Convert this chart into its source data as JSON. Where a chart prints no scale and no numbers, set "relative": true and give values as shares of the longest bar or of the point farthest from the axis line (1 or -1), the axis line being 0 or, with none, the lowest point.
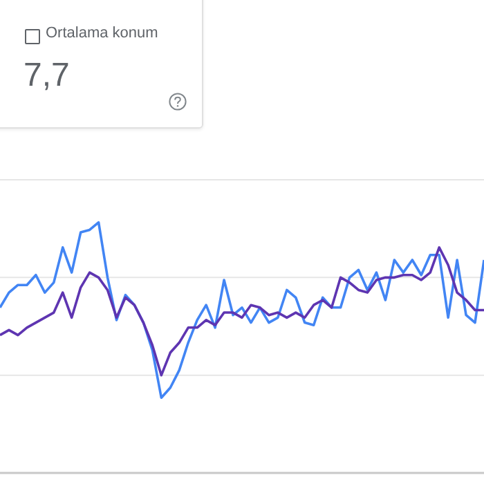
{
  "chart_data": {
    "type": "line",
    "relative": true,
    "legend": false,
    "marker": "none",
    "ref_lines": [
      {
        "axis": "y",
        "value": 0.39,
        "color": "#e6e6e6"
      },
      {
        "axis": "y",
        "value": 0.78,
        "color": "#e6e6e6"
      },
      {
        "axis": "y",
        "value": 1.17,
        "color": "#e6e6e6"
      }
    ],
    "annotations": [
      "Ortalama konum",
      "7,7"
    ],
    "categories": [
      null,
      null,
      null,
      null,
      null,
      null,
      null,
      null,
      null,
      null,
      null,
      null,
      null,
      null,
      null,
      null,
      null,
      null,
      null,
      null,
      null,
      null,
      null,
      null,
      null,
      null,
      null,
      null,
      null,
      null,
      null,
      null,
      null,
      null,
      null,
      null,
      null,
      null,
      null,
      null,
      null,
      null,
      null,
      null,
      null,
      null,
      null,
      null,
      null,
      null,
      null,
      null,
      null,
      null,
      null
    ],
    "series": [
      {
        "color": "#4285f4",
        "values": [
          0.66,
          0.72,
          0.75,
          0.75,
          0.79,
          0.72,
          0.76,
          0.9,
          0.8,
          0.96,
          0.97,
          1.0,
          0.78,
          0.61,
          0.71,
          0.67,
          0.6,
          0.49,
          0.3,
          0.34,
          0.41,
          0.52,
          0.61,
          0.67,
          0.58,
          0.77,
          0.63,
          0.66,
          0.6,
          0.66,
          0.6,
          0.62,
          0.73,
          0.7,
          0.6,
          0.59,
          0.7,
          0.66,
          0.66,
          0.78,
          0.81,
          0.73,
          0.8,
          0.69,
          0.85,
          0.8,
          0.85,
          0.79,
          0.87,
          0.87,
          0.62,
          0.85,
          0.63,
          0.6,
          0.85
        ]
      },
      {
        "color": "#5e35b1",
        "values": [
          0.55,
          0.57,
          0.55,
          0.58,
          0.6,
          0.62,
          0.64,
          0.72,
          0.62,
          0.74,
          0.8,
          0.78,
          0.73,
          0.62,
          0.7,
          0.67,
          0.6,
          0.51,
          0.39,
          0.48,
          0.52,
          0.58,
          0.58,
          0.61,
          0.59,
          0.64,
          0.64,
          0.62,
          0.67,
          0.66,
          0.63,
          0.64,
          0.62,
          0.64,
          0.62,
          0.67,
          0.69,
          0.66,
          0.78,
          0.76,
          0.73,
          0.72,
          0.77,
          0.78,
          0.78,
          0.79,
          0.79,
          0.77,
          0.8,
          0.9,
          0.83,
          0.72,
          0.69,
          0.65,
          0.65
        ]
      }
    ]
  }
}
